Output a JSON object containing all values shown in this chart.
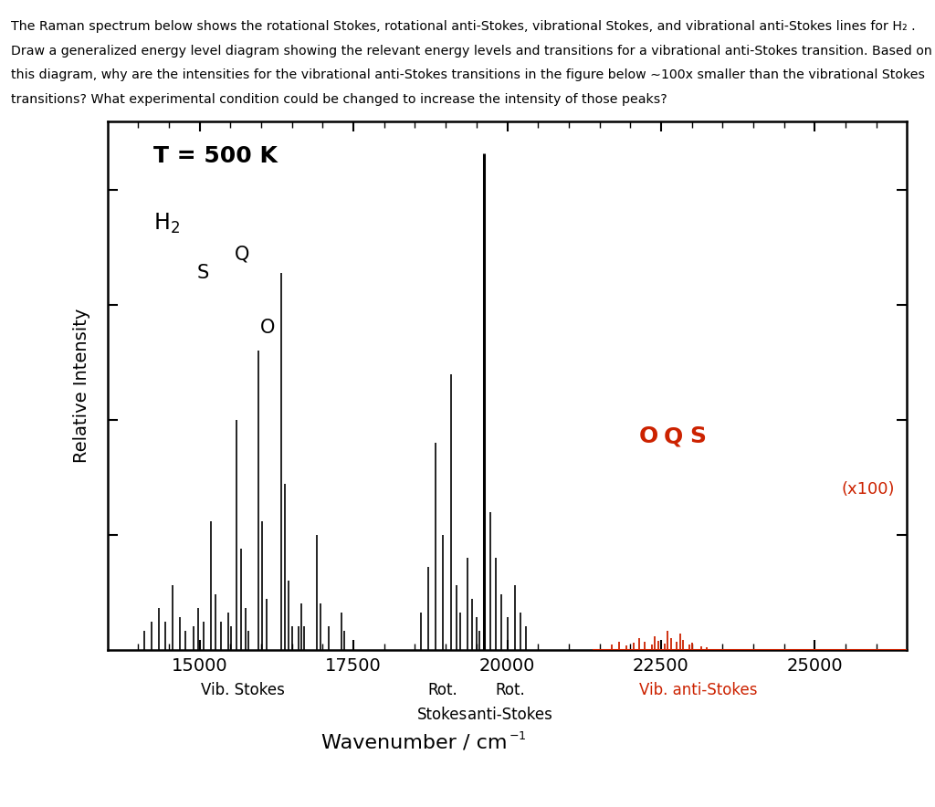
{
  "ylabel": "Relative Intensity",
  "xlim": [
    13500,
    26500
  ],
  "ylim": [
    0,
    1.15
  ],
  "black_color": "#000000",
  "red_color": "#cc2200",
  "background_color": "#ffffff",
  "vib_stokes_peaks": [
    [
      14100,
      0.04
    ],
    [
      14220,
      0.06
    ],
    [
      14330,
      0.09
    ],
    [
      14440,
      0.06
    ],
    [
      14560,
      0.14
    ],
    [
      14670,
      0.07
    ],
    [
      14770,
      0.04
    ],
    [
      14900,
      0.05
    ],
    [
      14980,
      0.09
    ],
    [
      15060,
      0.06
    ],
    [
      15180,
      0.28
    ],
    [
      15260,
      0.12
    ],
    [
      15340,
      0.06
    ],
    [
      15460,
      0.08
    ],
    [
      15510,
      0.05
    ],
    [
      15600,
      0.5
    ],
    [
      15670,
      0.22
    ],
    [
      15740,
      0.09
    ],
    [
      15790,
      0.04
    ],
    [
      15950,
      0.65
    ],
    [
      16020,
      0.28
    ],
    [
      16090,
      0.11
    ],
    [
      16330,
      0.82
    ],
    [
      16390,
      0.36
    ],
    [
      16450,
      0.15
    ],
    [
      16500,
      0.05
    ],
    [
      16600,
      0.05
    ],
    [
      16650,
      0.1
    ],
    [
      16700,
      0.05
    ],
    [
      16900,
      0.25
    ],
    [
      16960,
      0.1
    ],
    [
      17100,
      0.05
    ],
    [
      17300,
      0.08
    ],
    [
      17350,
      0.04
    ]
  ],
  "laser_peak": [
    [
      19620,
      1.08
    ]
  ],
  "rot_stokes_peaks": [
    [
      18600,
      0.08
    ],
    [
      18720,
      0.18
    ],
    [
      18840,
      0.45
    ],
    [
      18960,
      0.25
    ],
    [
      19080,
      0.6
    ],
    [
      19180,
      0.14
    ],
    [
      19240,
      0.08
    ],
    [
      19350,
      0.2
    ],
    [
      19430,
      0.11
    ],
    [
      19500,
      0.07
    ],
    [
      19540,
      0.04
    ]
  ],
  "rot_antistokes_peaks": [
    [
      19730,
      0.3
    ],
    [
      19820,
      0.2
    ],
    [
      19910,
      0.12
    ],
    [
      20000,
      0.07
    ],
    [
      20120,
      0.14
    ],
    [
      20210,
      0.08
    ],
    [
      20300,
      0.05
    ]
  ],
  "vib_antistokes_peaks": [
    [
      21700,
      0.012
    ],
    [
      21820,
      0.018
    ],
    [
      21930,
      0.01
    ],
    [
      22050,
      0.016
    ],
    [
      22140,
      0.025
    ],
    [
      22230,
      0.018
    ],
    [
      22350,
      0.012
    ],
    [
      22400,
      0.03
    ],
    [
      22450,
      0.02
    ],
    [
      22560,
      0.014
    ],
    [
      22610,
      0.04
    ],
    [
      22660,
      0.026
    ],
    [
      22760,
      0.018
    ],
    [
      22810,
      0.035
    ],
    [
      22860,
      0.022
    ],
    [
      22960,
      0.012
    ],
    [
      23010,
      0.016
    ],
    [
      23150,
      0.008
    ],
    [
      23250,
      0.006
    ]
  ],
  "tick_positions": [
    15000,
    17500,
    20000,
    22500,
    25000
  ],
  "minor_tick_positions": [
    14000,
    14500,
    15000,
    15500,
    16000,
    16500,
    17000,
    17500,
    18000,
    18500,
    19000,
    19500,
    20000,
    20500,
    21000,
    21500,
    22000,
    22500,
    23000,
    23500,
    24000,
    24500,
    25000,
    25500,
    26000
  ],
  "ytick_positions": [
    0.25,
    0.5,
    0.75,
    1.0
  ],
  "header_lines": [
    "The Raman spectrum below shows the rotational Stokes, rotational anti-Stokes, vibrational Stokes, and vibrational anti-Stokes lines for H₂ .",
    "Draw a generalized energy level diagram showing the relevant energy levels and transitions for a vibrational anti-Stokes transition. Based on",
    "this diagram, why are the intensities for the vibrational anti-Stokes transitions in the figure below ∼100x smaller than the vibrational Stokes",
    "transitions? What experimental condition could be changed to increase the intensity of those peaks?"
  ]
}
